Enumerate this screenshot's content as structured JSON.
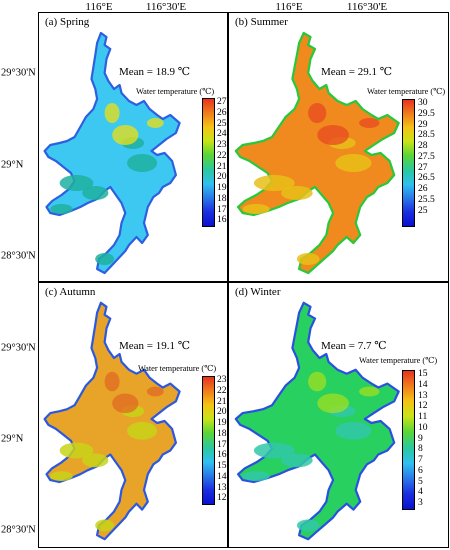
{
  "axes": {
    "top_labels": [
      "116°E",
      "116°30'E",
      "116°E",
      "116°30'E"
    ],
    "left_labels": [
      "29°30'N",
      "29°N",
      "28°30'N",
      "29°30'N",
      "29°N",
      "28°30'N"
    ]
  },
  "panels": [
    {
      "title": "(a) Spring",
      "mean": "Mean = 18.9 ℃",
      "colorbar_title": "Water temperature (℃)",
      "ticks": [
        "27",
        "26",
        "25",
        "24",
        "23",
        "22",
        "21",
        "20",
        "19",
        "18",
        "17",
        "16"
      ],
      "palette": {
        "body": "#3cc8f0",
        "shore": "#1fb0a0",
        "edge": "#2d5fe0",
        "hot": "#f0e010"
      }
    },
    {
      "title": "(b) Summer",
      "mean": "Mean = 29.1 ℃",
      "colorbar_title": "Water temperature (℃)",
      "ticks": [
        "30",
        "29.5",
        "29",
        "28.5",
        "28",
        "27.5",
        "27",
        "26.5",
        "26",
        "25.5",
        "25"
      ],
      "palette": {
        "body": "#f08a1e",
        "shore": "#e8c018",
        "edge": "#28c83c",
        "hot": "#e84820"
      }
    },
    {
      "title": "(c) Autumn",
      "mean": "Mean = 19.1 ℃",
      "colorbar_title": "Water temperature (℃)",
      "ticks": [
        "23",
        "22",
        "21",
        "20",
        "19",
        "18",
        "17",
        "16",
        "15",
        "14",
        "13",
        "12"
      ],
      "palette": {
        "body": "#e8a428",
        "shore": "#c8d418",
        "edge": "#2a58e0",
        "hot": "#e06a22"
      }
    },
    {
      "title": "(d) Winter",
      "mean": "Mean = 7.7 ℃",
      "colorbar_title": "Water temperature (℃)",
      "ticks": [
        "15",
        "14",
        "13",
        "12",
        "11",
        "10",
        "9",
        "8",
        "7",
        "6",
        "5",
        "4",
        "3"
      ],
      "palette": {
        "body": "#28d060",
        "shore": "#30c8a8",
        "edge": "#2a50e0",
        "hot": "#a0e020"
      }
    }
  ],
  "colormap": [
    "#e8321e",
    "#f07c1c",
    "#f4c414",
    "#c8e418",
    "#5ad636",
    "#2ac8a0",
    "#30c0f0",
    "#2a78e8",
    "#1a2ee0",
    "#0a10d0"
  ]
}
